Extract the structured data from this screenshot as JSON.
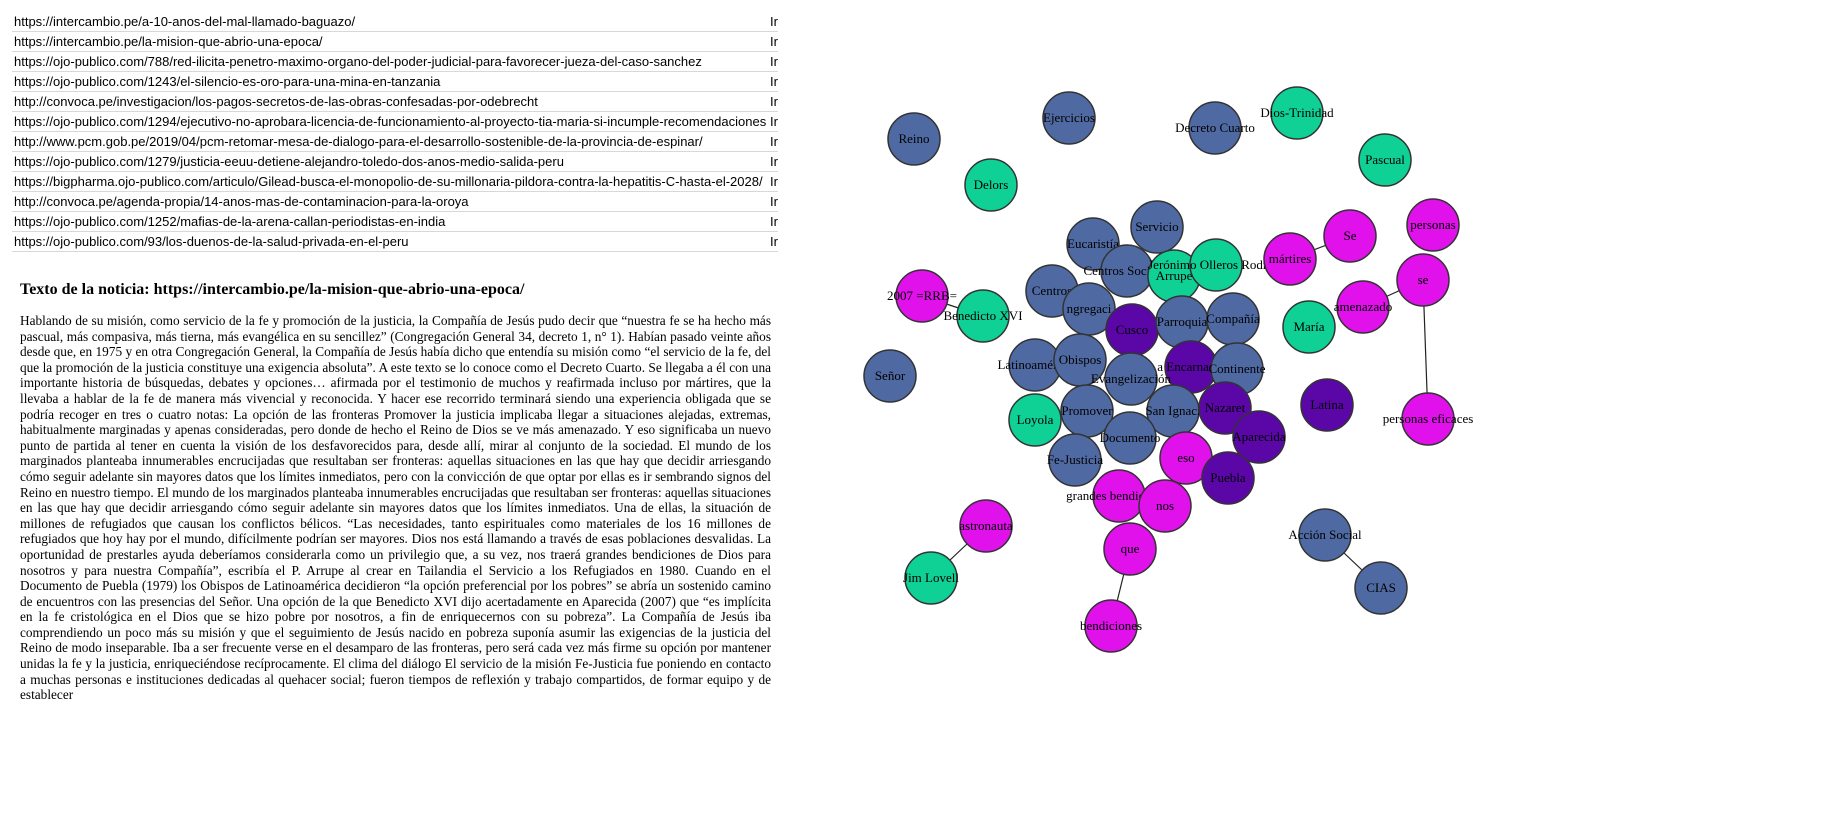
{
  "links": [
    {
      "url": "https://intercambio.pe/a-10-anos-del-mal-llamado-baguazo/",
      "action": "Ir"
    },
    {
      "url": "https://intercambio.pe/la-mision-que-abrio-una-epoca/",
      "action": "Ir"
    },
    {
      "url": "https://ojo-publico.com/788/red-ilicita-penetro-maximo-organo-del-poder-judicial-para-favorecer-jueza-del-caso-sanchez",
      "action": "Ir"
    },
    {
      "url": "https://ojo-publico.com/1243/el-silencio-es-oro-para-una-mina-en-tanzania",
      "action": "Ir"
    },
    {
      "url": "http://convoca.pe/investigacion/los-pagos-secretos-de-las-obras-confesadas-por-odebrecht",
      "action": "Ir"
    },
    {
      "url": "https://ojo-publico.com/1294/ejecutivo-no-aprobara-licencia-de-funcionamiento-al-proyecto-tia-maria-si-incumple-recomendaciones",
      "action": "Ir"
    },
    {
      "url": "http://www.pcm.gob.pe/2019/04/pcm-retomar-mesa-de-dialogo-para-el-desarrollo-sostenible-de-la-provincia-de-espinar/",
      "action": "Ir"
    },
    {
      "url": "https://ojo-publico.com/1279/justicia-eeuu-detiene-alejandro-toledo-dos-anos-medio-salida-peru",
      "action": "Ir"
    },
    {
      "url": "https://bigpharma.ojo-publico.com/articulo/Gilead-busca-el-monopolio-de-su-millonaria-pildora-contra-la-hepatitis-C-hasta-el-2028/",
      "action": "Ir"
    },
    {
      "url": "http://convoca.pe/agenda-propia/14-anos-mas-de-contaminacion-para-la-oroya",
      "action": "Ir"
    },
    {
      "url": "https://ojo-publico.com/1252/mafias-de-la-arena-callan-periodistas-en-india",
      "action": "Ir"
    },
    {
      "url": "https://ojo-publico.com/93/los-duenos-de-la-salud-privada-en-el-peru",
      "action": "Ir"
    }
  ],
  "article": {
    "title": "Texto de la noticia: https://intercambio.pe/la-mision-que-abrio-una-epoca/",
    "body": "Hablando de su misión, como servicio de la fe y promoción de la justicia, la Compañía de Jesús pudo decir que “nuestra fe se ha hecho más pascual, más compasiva, más tierna, más evangélica en su sencillez” (Congregación General 34, decreto 1, n° 1). Habían pasado veinte años desde que, en 1975 y en otra Congregación General, la Compañía de Jesús había dicho que entendía su misión como “el servicio de la fe, del que la promoción de la justicia constituye una exigencia absoluta”. A este texto se lo conoce como el Decreto Cuarto. Se llegaba a él con una importante historia de búsquedas, debates y opciones… afirmada por el testimonio de muchos y reafirmada incluso por mártires, que la llevaba a hablar de la fe de manera más vivencial y reconocida. Y hacer ese recorrido terminará siendo una experiencia obligada que se podría recoger en tres o cuatro notas: La opción de las fronteras Promover la justicia implicaba llegar a situaciones alejadas, extremas, habitualmente marginadas y apenas consideradas, pero donde de hecho el Reino de Dios se ve más amenazado. Y eso significaba un nuevo punto de partida al tener en cuenta la visión de los desfavorecidos para, desde allí, mirar al conjunto de la sociedad. El mundo de los marginados planteaba innumerables encrucijadas que resultaban ser fronteras: aquellas situaciones en las que hay que decidir arriesgando cómo seguir adelante sin mayores datos que los límites inmediatos, pero con la convicción de que optar por ellas es ir sembrando signos del Reino en nuestro tiempo. El mundo de los marginados planteaba innumerables encrucijadas que resultaban ser fronteras: aquellas situaciones en las que hay que decidir arriesgando cómo seguir adelante sin mayores datos que los límites inmediatos. Una de ellas, la situación de millones de refugiados que causan los conflictos bélicos. “Las necesidades, tanto espirituales como materiales de los 16 millones de refugiados que hoy hay por el mundo, difícilmente podrían ser mayores. Dios nos está llamando a través de esas poblaciones desvalidas. La oportunidad de prestarles ayuda deberíamos considerarla como un privilegio que, a su vez, nos traerá grandes bendiciones de Dios para nosotros y para nuestra Compañía”, escribía el P. Arrupe al crear en Tailandia el Servicio a los Refugiados en 1980. Cuando en el Documento de Puebla (1979) los Obispos de Latinoamérica decidieron “la opción preferencial por los pobres” se abría un sostenido camino de encuentros con las presencias del Señor. Una opción de la que Benedicto XVI dijo acertadamente en Aparecida (2007) que “es implícita en la fe cristológica en el Dios que se hizo pobre por nosotros, a fin de enriquecernos con su pobreza”. La Compañía de Jesús iba comprendiendo un poco más su misión y que el seguimiento de Jesús nacido en pobreza suponía asumir las exigencias de la justicia del Reino de modo inseparable. Iba a ser frecuente verse en el desamparo de las fronteras, pero será cada vez más firme su opción por mantener unidas la fe y la justicia, enriqueciéndose recíprocamente. El clima del diálogo El servicio de la misión Fe-Justicia fue poniendo en contacto a muchas personas e instituciones dedicadas al quehacer social; fueron tiempos de reflexión y trabajo compartidos, de formar equipo y de establecer"
  },
  "graph": {
    "colors": {
      "blue": "#4f6aa3",
      "green": "#0fd196",
      "magenta": "#e011ea",
      "purple": "#5b07a8",
      "stroke": "#333333",
      "edge": "#222222"
    },
    "nodes": [
      {
        "id": "reino",
        "label": "Reino",
        "group": "blue"
      },
      {
        "id": "ejercicios",
        "label": "Ejercicios",
        "group": "blue"
      },
      {
        "id": "decreto-cuarto",
        "label": "Decreto Cuarto",
        "group": "blue"
      },
      {
        "id": "dios-trinidad",
        "label": "Dios-Trinidad",
        "group": "green"
      },
      {
        "id": "pascual",
        "label": "Pascual",
        "group": "green"
      },
      {
        "id": "delors",
        "label": "Delors",
        "group": "green"
      },
      {
        "id": "servicio",
        "label": "Servicio",
        "group": "blue"
      },
      {
        "id": "eucaristia",
        "label": "Eucaristía",
        "group": "blue"
      },
      {
        "id": "centros-sociales",
        "label": "Centros Sociales",
        "group": "blue"
      },
      {
        "id": "arrupe",
        "label": "Arrupe",
        "group": "green"
      },
      {
        "id": "jeronimo",
        "label": "Jerónimo Olleros Rodrígu",
        "group": "green"
      },
      {
        "id": "martires",
        "label": "mártires",
        "group": "magenta"
      },
      {
        "id": "se-cap",
        "label": "Se",
        "group": "magenta"
      },
      {
        "id": "personas",
        "label": "personas",
        "group": "magenta"
      },
      {
        "id": "rrb",
        "label": "2007 =RRB=",
        "group": "magenta"
      },
      {
        "id": "centros",
        "label": "Centros",
        "group": "blue"
      },
      {
        "id": "congregacion",
        "label": "ngregaci",
        "group": "blue"
      },
      {
        "id": "benedicto",
        "label": "Benedicto XVI",
        "group": "green"
      },
      {
        "id": "cusco",
        "label": "Cusco",
        "group": "purple"
      },
      {
        "id": "parroquia",
        "label": "Parroquia",
        "group": "blue"
      },
      {
        "id": "compania",
        "label": "Compañía",
        "group": "blue"
      },
      {
        "id": "se",
        "label": "se",
        "group": "magenta"
      },
      {
        "id": "amenazado",
        "label": "amenazado",
        "group": "magenta"
      },
      {
        "id": "maria",
        "label": "María",
        "group": "green"
      },
      {
        "id": "senor",
        "label": "Señor",
        "group": "blue"
      },
      {
        "id": "latinoamerica",
        "label": "Latinoamérica",
        "group": "blue"
      },
      {
        "id": "obispos",
        "label": "Obispos",
        "group": "blue"
      },
      {
        "id": "encarnacion",
        "label": "a Encarnació",
        "group": "purple"
      },
      {
        "id": "evangelizacion",
        "label": "Evangelización",
        "group": "blue"
      },
      {
        "id": "continente",
        "label": "Continente",
        "group": "blue"
      },
      {
        "id": "latina",
        "label": "Latina",
        "group": "purple"
      },
      {
        "id": "loyola",
        "label": "Loyola",
        "group": "green"
      },
      {
        "id": "promover",
        "label": "Promover",
        "group": "blue"
      },
      {
        "id": "san-ignacio",
        "label": "San Ignaci",
        "group": "blue"
      },
      {
        "id": "nazaret",
        "label": "Nazaret",
        "group": "purple"
      },
      {
        "id": "personas-eficaces",
        "label": "personas eficaces",
        "group": "magenta"
      },
      {
        "id": "documento",
        "label": "Documento",
        "group": "blue"
      },
      {
        "id": "aparecida",
        "label": "Aparecida",
        "group": "purple"
      },
      {
        "id": "fe-justicia",
        "label": "Fe-Justicia",
        "group": "blue"
      },
      {
        "id": "eso",
        "label": "eso",
        "group": "magenta"
      },
      {
        "id": "puebla",
        "label": "Puebla",
        "group": "purple"
      },
      {
        "id": "grandes-bendiciones",
        "label": "grandes bendiciones",
        "group": "magenta"
      },
      {
        "id": "nos",
        "label": "nos",
        "group": "magenta"
      },
      {
        "id": "astronauta",
        "label": "astronauta",
        "group": "magenta"
      },
      {
        "id": "que",
        "label": "que",
        "group": "magenta"
      },
      {
        "id": "accion-social",
        "label": "Acción Social",
        "group": "blue"
      },
      {
        "id": "jim-lovell",
        "label": "Jim Lovell",
        "group": "green"
      },
      {
        "id": "cias",
        "label": "CIAS",
        "group": "blue"
      },
      {
        "id": "bendiciones",
        "label": "bendiciones",
        "group": "magenta"
      }
    ],
    "edges": [
      [
        "martires",
        "se-cap"
      ],
      [
        "rrb",
        "benedicto"
      ],
      [
        "se",
        "amenazado"
      ],
      [
        "se",
        "personas-eficaces"
      ],
      [
        "astronauta",
        "jim-lovell"
      ],
      [
        "accion-social",
        "cias"
      ],
      [
        "que",
        "bendiciones"
      ]
    ]
  }
}
